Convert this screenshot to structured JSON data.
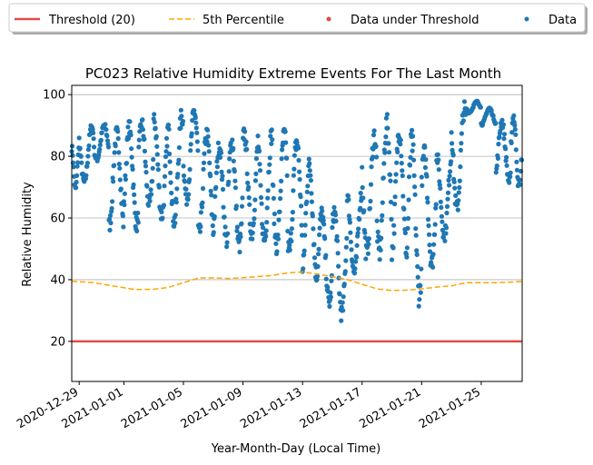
{
  "chart_data": {
    "type": "scatter",
    "title": "PC023 Relative Humidity Extreme Events For The Last Month",
    "xlabel": "Year-Month-Day (Local Time)",
    "ylabel": "Relative Humidity",
    "xlim": [
      "2020-12-28 12:00",
      "2021-01-27 18:00"
    ],
    "ylim": [
      7,
      103
    ],
    "x_tick_labels": [
      "2020-12-29",
      "2021-01-01",
      "2021-01-05",
      "2021-01-09",
      "2021-01-13",
      "2021-01-17",
      "2021-01-21",
      "2021-01-25"
    ],
    "y_ticks": [
      20,
      40,
      60,
      80,
      100
    ],
    "grid": "horizontal",
    "legend_placement": "top (outside plot, single row)",
    "legend": [
      "Threshold (20)",
      "5th Percentile",
      "Data under Threshold",
      "Data"
    ],
    "threshold": {
      "name": "Threshold (20)",
      "value": 20,
      "color": "#e24a4a",
      "style": "solid"
    },
    "percentile": {
      "name": "5th Percentile",
      "color": "#ffa500",
      "style": "dashed",
      "points": [
        [
          "2020-12-28 12:00",
          39.5
        ],
        [
          "2020-12-30",
          39.0
        ],
        [
          "2020-12-31",
          38.2
        ],
        [
          "2021-01-01 12:00",
          37.0
        ],
        [
          "2021-01-02",
          36.8
        ],
        [
          "2021-01-03",
          36.9
        ],
        [
          "2021-01-04",
          37.5
        ],
        [
          "2021-01-05",
          39.0
        ],
        [
          "2021-01-06",
          40.5
        ],
        [
          "2021-01-07",
          40.6
        ],
        [
          "2021-01-08",
          40.4
        ],
        [
          "2021-01-09",
          40.6
        ],
        [
          "2021-01-10",
          41.0
        ],
        [
          "2021-01-11",
          41.4
        ],
        [
          "2021-01-12",
          42.2
        ],
        [
          "2021-01-13",
          42.5
        ],
        [
          "2021-01-14",
          41.8
        ],
        [
          "2021-01-15",
          41.0
        ],
        [
          "2021-01-16",
          40.0
        ],
        [
          "2021-01-17",
          38.5
        ],
        [
          "2021-01-18",
          37.0
        ],
        [
          "2021-01-19",
          36.5
        ],
        [
          "2021-01-20",
          36.6
        ],
        [
          "2021-01-21",
          37.0
        ],
        [
          "2021-01-22",
          37.6
        ],
        [
          "2021-01-23",
          38.0
        ],
        [
          "2021-01-24",
          39.0
        ],
        [
          "2021-01-25",
          39.0
        ],
        [
          "2021-01-26",
          39.0
        ],
        [
          "2021-01-27 18:00",
          39.4
        ]
      ]
    },
    "series": [
      {
        "name": "Data",
        "color": "#1f77b4",
        "ranges": [
          [
            "2020-12-28 12:00",
            68,
            84
          ],
          [
            "2020-12-29",
            70,
            91
          ],
          [
            "2020-12-30",
            78,
            91
          ],
          [
            "2020-12-31",
            55,
            90
          ],
          [
            "2021-01-01",
            55,
            92
          ],
          [
            "2021-01-02",
            62,
            93
          ],
          [
            "2021-01-03",
            58,
            94
          ],
          [
            "2021-01-04",
            56,
            96
          ],
          [
            "2021-01-05",
            64,
            97
          ],
          [
            "2021-01-06",
            52,
            90
          ],
          [
            "2021-01-07",
            50,
            86
          ],
          [
            "2021-01-08",
            48,
            88
          ],
          [
            "2021-01-09",
            52,
            90
          ],
          [
            "2021-01-10",
            50,
            90
          ],
          [
            "2021-01-11",
            48,
            90
          ],
          [
            "2021-01-12",
            46,
            88
          ],
          [
            "2021-01-13",
            38,
            80
          ],
          [
            "2021-01-14",
            30,
            64
          ],
          [
            "2021-01-15",
            26,
            65
          ],
          [
            "2021-01-16",
            40,
            70
          ],
          [
            "2021-01-17",
            45,
            90
          ],
          [
            "2021-01-18",
            45,
            94
          ],
          [
            "2021-01-19",
            46,
            92
          ],
          [
            "2021-01-20",
            31,
            89
          ],
          [
            "2021-01-21",
            42,
            84
          ],
          [
            "2021-01-22",
            52,
            82
          ],
          [
            "2021-01-23",
            60,
            98
          ],
          [
            "2021-01-24",
            94,
            98
          ],
          [
            "2021-01-25",
            90,
            96
          ],
          [
            "2021-01-26",
            70,
            93
          ],
          [
            "2021-01-27",
            68,
            95
          ]
        ]
      },
      {
        "name": "Data under Threshold",
        "color": "#e24a4a",
        "points": []
      }
    ]
  }
}
